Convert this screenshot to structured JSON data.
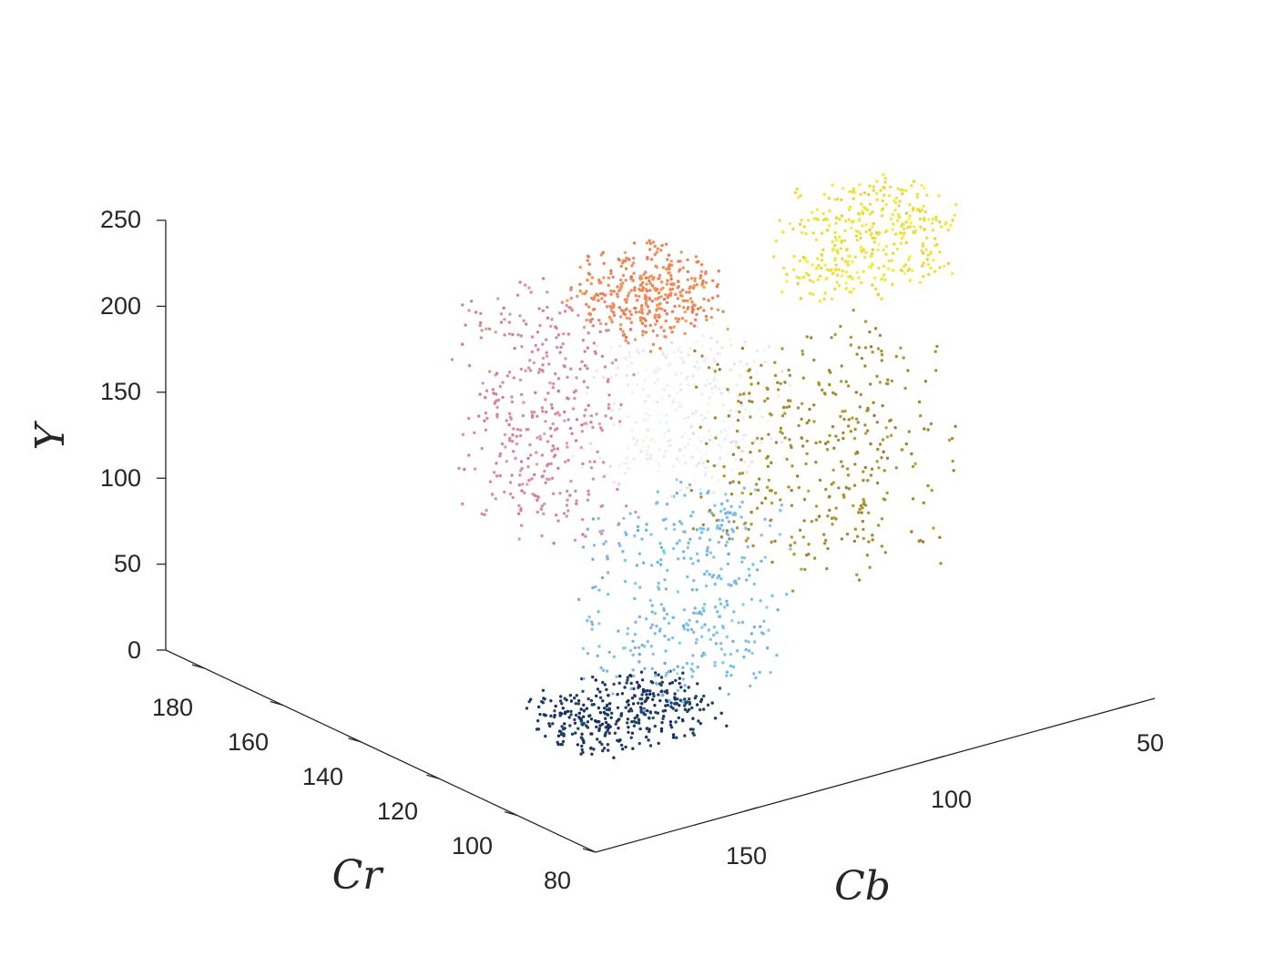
{
  "chart_data": {
    "type": "scatter",
    "projection": "3d",
    "title": "",
    "xlabel": "Cb",
    "ylabel": "Cr",
    "zlabel": "Y",
    "xlim": [
      40,
      190
    ],
    "ylim": [
      80,
      190
    ],
    "zlim": [
      0,
      250
    ],
    "x_ticks": [
      "50",
      "100",
      "150"
    ],
    "y_ticks": [
      "80",
      "100",
      "120",
      "140",
      "160",
      "180"
    ],
    "z_ticks": [
      "0",
      "50",
      "100",
      "150",
      "200",
      "250"
    ],
    "grid": false,
    "color_encoding": "each point colored by its own RGB color",
    "clusters": [
      {
        "label": "dark blue base",
        "cb": [
          125,
          160
        ],
        "cr": [
          108,
          128
        ],
        "y": [
          0,
          25
        ],
        "color": "#1e3a66"
      },
      {
        "label": "light blue column",
        "cb": [
          110,
          150
        ],
        "cr": [
          105,
          125
        ],
        "y": [
          25,
          130
        ],
        "color": "#7cbde8"
      },
      {
        "label": "pale white core",
        "cb": [
          105,
          140
        ],
        "cr": [
          110,
          135
        ],
        "y": [
          130,
          210
        ],
        "color": "#eef2f2"
      },
      {
        "label": "pink band",
        "cb": [
          105,
          130
        ],
        "cr": [
          150,
          175
        ],
        "y": [
          60,
          190
        ],
        "color": "#d98aa0"
      },
      {
        "label": "salmon top",
        "cb": [
          90,
          115
        ],
        "cr": [
          140,
          160
        ],
        "y": [
          180,
          215
        ],
        "color": "#f08a5a"
      },
      {
        "label": "olive band",
        "cb": [
          60,
          105
        ],
        "cr": [
          110,
          140
        ],
        "y": [
          60,
          180
        ],
        "color": "#a8902e"
      },
      {
        "label": "yellow tip",
        "cb": [
          40,
          75
        ],
        "cr": [
          130,
          145
        ],
        "y": [
          190,
          245
        ],
        "color": "#f2e040"
      }
    ]
  }
}
